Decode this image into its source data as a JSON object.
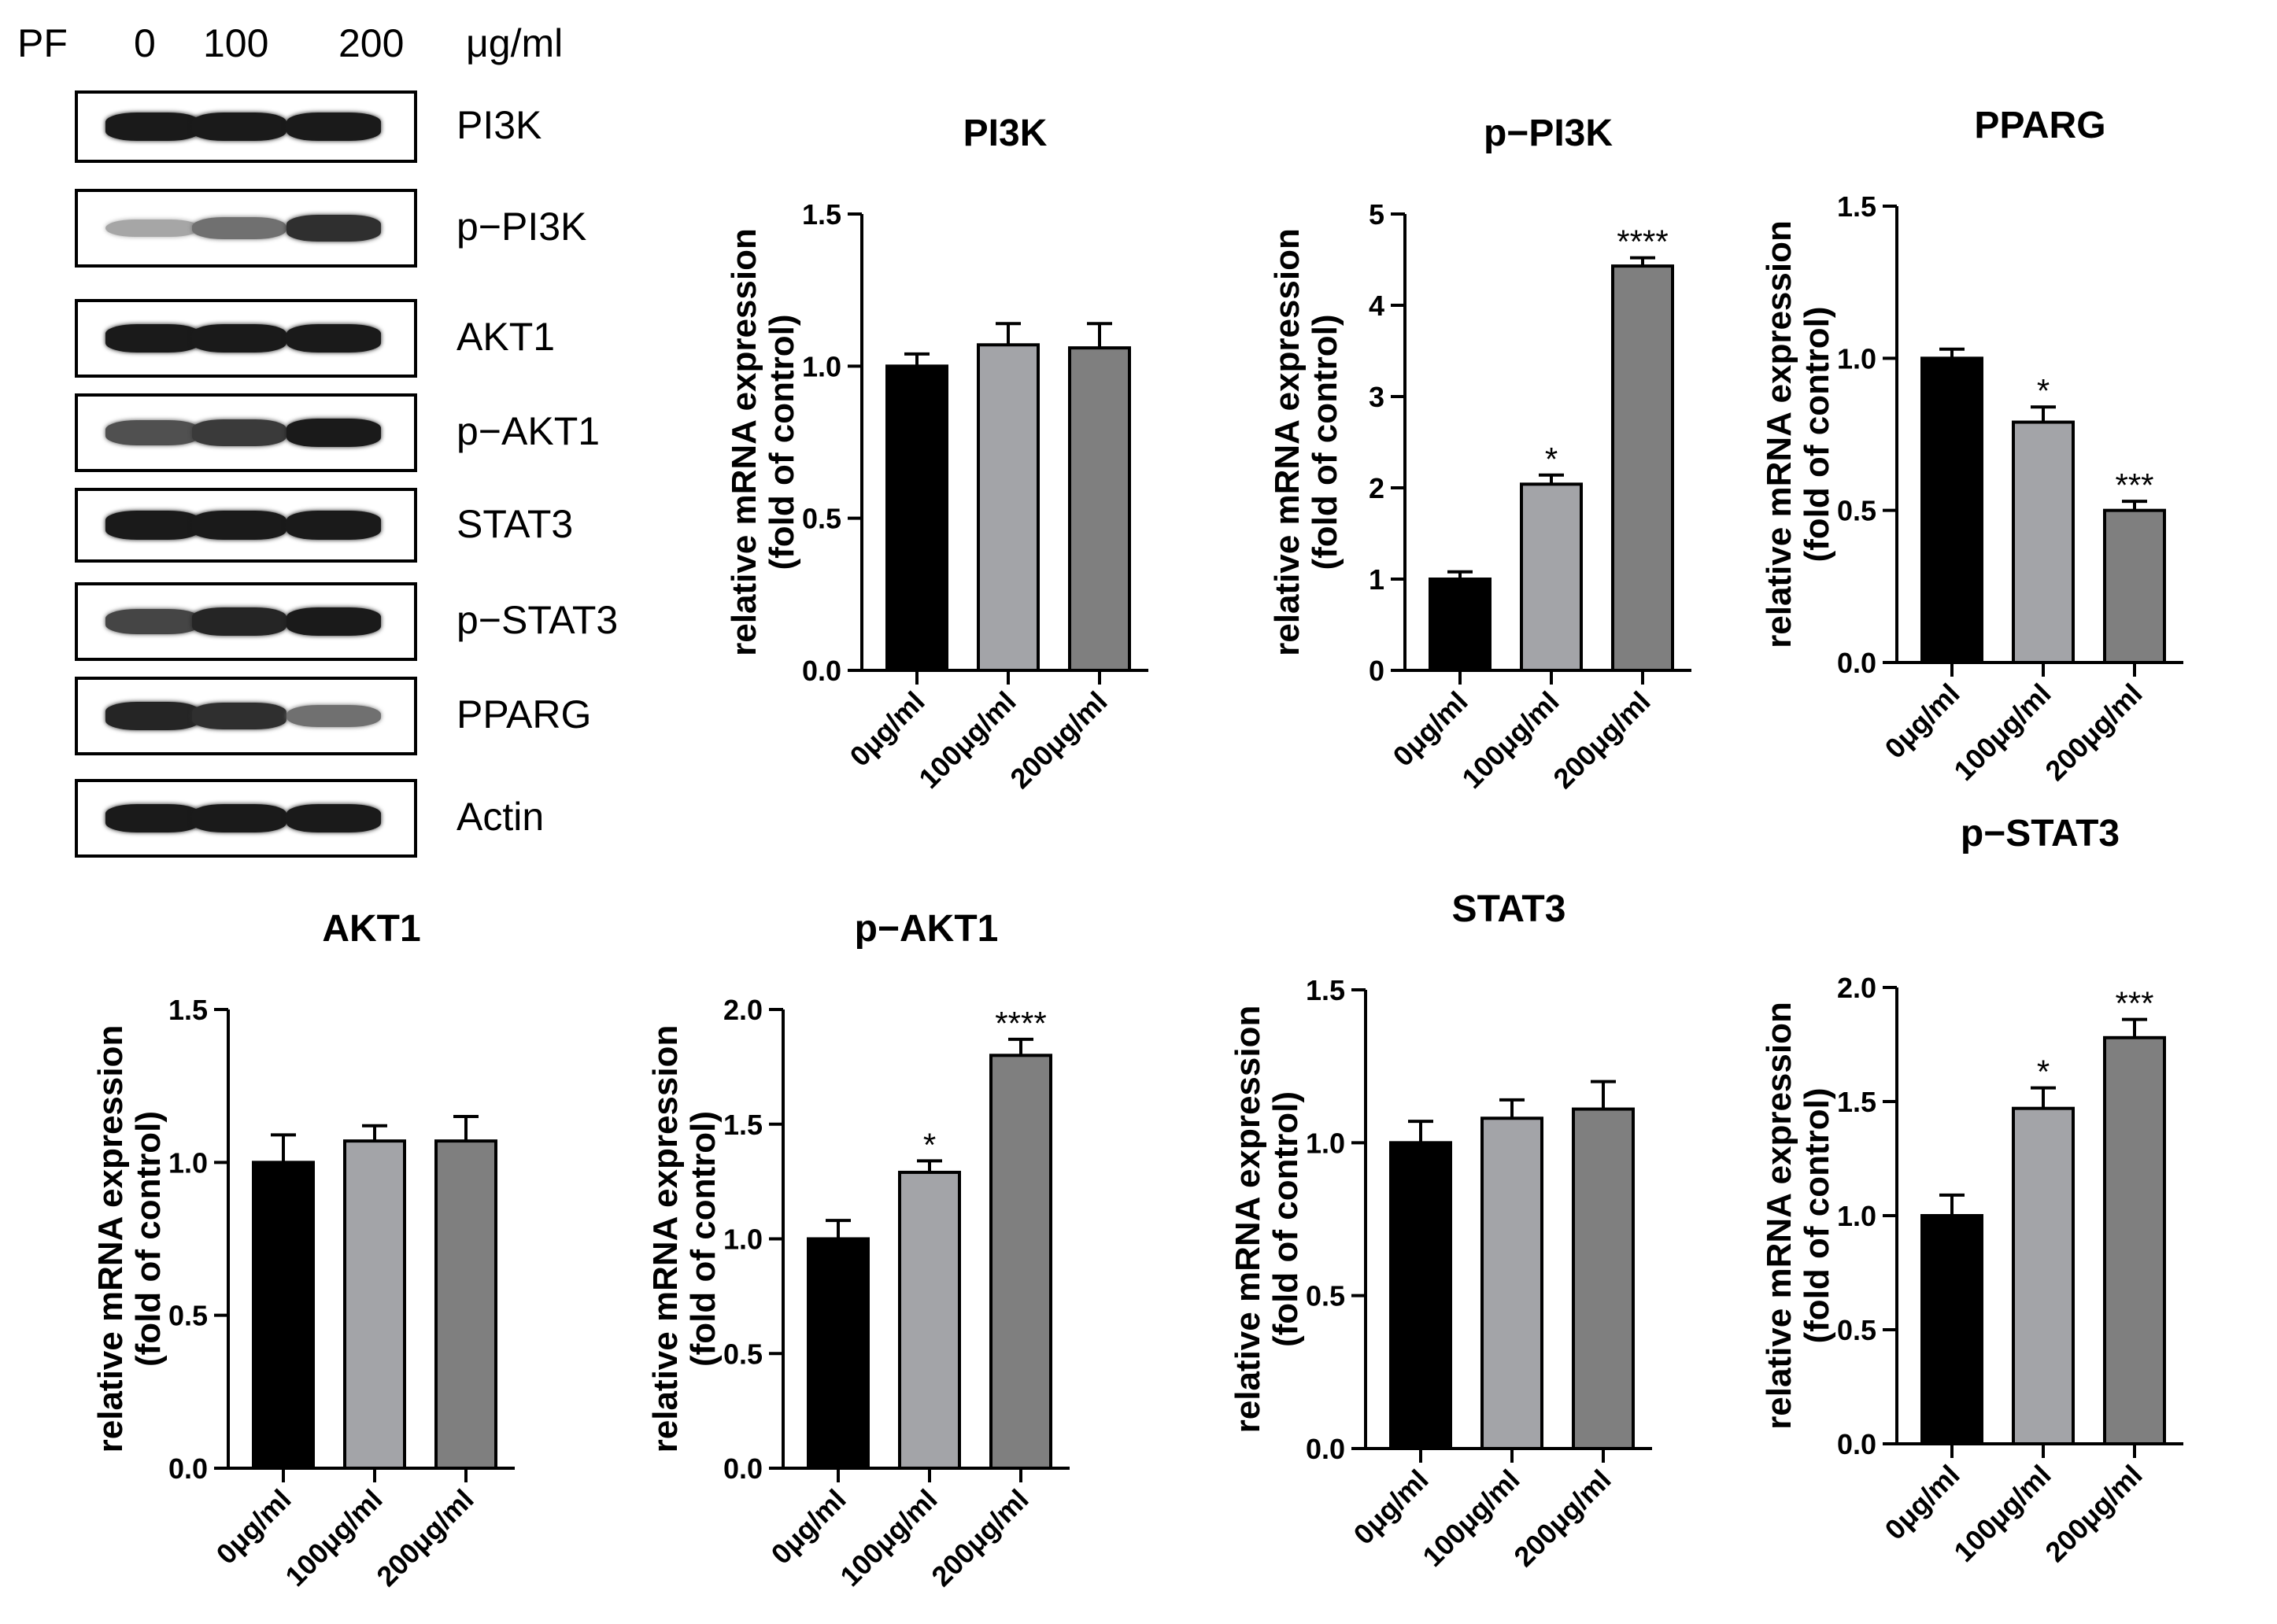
{
  "western_blot": {
    "treatment_label": "PF",
    "doses": [
      "0",
      "100",
      "200"
    ],
    "unit_label": "μg/ml",
    "bands": [
      {
        "label": "PI3K",
        "intensity": [
          0.95,
          0.95,
          0.95
        ]
      },
      {
        "label": "p−PI3K",
        "intensity": [
          0.3,
          0.55,
          0.85
        ]
      },
      {
        "label": "AKT1",
        "intensity": [
          0.95,
          0.95,
          0.95
        ]
      },
      {
        "label": "p−AKT1",
        "intensity": [
          0.7,
          0.8,
          0.95
        ]
      },
      {
        "label": "STAT3",
        "intensity": [
          0.95,
          0.95,
          0.95
        ]
      },
      {
        "label": "p−STAT3",
        "intensity": [
          0.75,
          0.9,
          0.95
        ]
      },
      {
        "label": "PPARG",
        "intensity": [
          0.9,
          0.85,
          0.55
        ]
      },
      {
        "label": "Actin",
        "intensity": [
          0.95,
          0.95,
          0.95
        ]
      }
    ]
  },
  "colors": {
    "bar0": "#000000",
    "bar1": "#a3a4a8",
    "bar2": "#7f7f7f",
    "axis": "#000000"
  },
  "chart_data": [
    {
      "type": "bar",
      "title": "PI3K",
      "ylabel": [
        "relative mRNA expression",
        "(fold of control)"
      ],
      "categories": [
        "0μg/ml",
        "100μg/ml",
        "200μg/ml"
      ],
      "values": [
        1.0,
        1.07,
        1.06
      ],
      "errors": [
        0.04,
        0.07,
        0.08
      ],
      "significance": [
        "",
        "",
        ""
      ],
      "ylim": [
        0,
        1.5
      ],
      "yticks": [
        0.0,
        0.5,
        1.0,
        1.5
      ],
      "ytick_labels": [
        "0.0",
        "0.5",
        "1.0",
        "1.5"
      ]
    },
    {
      "type": "bar",
      "title": "p−PI3K",
      "ylabel": [
        "relative mRNA expression",
        "(fold of control)"
      ],
      "categories": [
        "0μg/ml",
        "100μg/ml",
        "200μg/ml"
      ],
      "values": [
        1.0,
        2.04,
        4.43
      ],
      "errors": [
        0.08,
        0.1,
        0.09
      ],
      "significance": [
        "",
        "*",
        "****"
      ],
      "ylim": [
        0,
        5
      ],
      "yticks": [
        0,
        1,
        2,
        3,
        4,
        5
      ],
      "ytick_labels": [
        "0",
        "1",
        "2",
        "3",
        "4",
        "5"
      ]
    },
    {
      "type": "bar",
      "title": "PPARG",
      "ylabel": [
        "relative mRNA expression",
        "(fold of control)"
      ],
      "categories": [
        "0μg/ml",
        "100μg/ml",
        "200μg/ml"
      ],
      "values": [
        1.0,
        0.79,
        0.5
      ],
      "errors": [
        0.03,
        0.05,
        0.03
      ],
      "significance": [
        "",
        "*",
        "***"
      ],
      "ylim": [
        0,
        1.5
      ],
      "yticks": [
        0.0,
        0.5,
        1.0,
        1.5
      ],
      "ytick_labels": [
        "0.0",
        "0.5",
        "1.0",
        "1.5"
      ]
    },
    {
      "type": "bar",
      "title": "AKT1",
      "ylabel": [
        "relative mRNA expression",
        "(fold of control)"
      ],
      "categories": [
        "0μg/ml",
        "100μg/ml",
        "200μg/ml"
      ],
      "values": [
        1.0,
        1.07,
        1.07
      ],
      "errors": [
        0.09,
        0.05,
        0.08
      ],
      "significance": [
        "",
        "",
        ""
      ],
      "ylim": [
        0,
        1.5
      ],
      "yticks": [
        0.0,
        0.5,
        1.0,
        1.5
      ],
      "ytick_labels": [
        "0.0",
        "0.5",
        "1.0",
        "1.5"
      ]
    },
    {
      "type": "bar",
      "title": "p−AKT1",
      "ylabel": [
        "relative mRNA expression",
        "(fold of control)"
      ],
      "categories": [
        "0μg/ml",
        "100μg/ml",
        "200μg/ml"
      ],
      "values": [
        1.0,
        1.29,
        1.8
      ],
      "errors": [
        0.08,
        0.05,
        0.07
      ],
      "significance": [
        "",
        "*",
        "****"
      ],
      "ylim": [
        0,
        2.0
      ],
      "yticks": [
        0.0,
        0.5,
        1.0,
        1.5,
        2.0
      ],
      "ytick_labels": [
        "0.0",
        "0.5",
        "1.0",
        "1.5",
        "2.0"
      ]
    },
    {
      "type": "bar",
      "title": "STAT3",
      "ylabel": [
        "relative mRNA expression",
        "(fold of control)"
      ],
      "categories": [
        "0μg/ml",
        "100μg/ml",
        "200μg/ml"
      ],
      "values": [
        1.0,
        1.08,
        1.11
      ],
      "errors": [
        0.07,
        0.06,
        0.09
      ],
      "significance": [
        "",
        "",
        ""
      ],
      "ylim": [
        0,
        1.5
      ],
      "yticks": [
        0.0,
        0.5,
        1.0,
        1.5
      ],
      "ytick_labels": [
        "0.0",
        "0.5",
        "1.0",
        "1.5"
      ]
    },
    {
      "type": "bar",
      "title": "p−STAT3",
      "ylabel": [
        "relative mRNA expression",
        "(fold of control)"
      ],
      "categories": [
        "0μg/ml",
        "100μg/ml",
        "200μg/ml"
      ],
      "values": [
        1.0,
        1.47,
        1.78
      ],
      "errors": [
        0.09,
        0.09,
        0.08
      ],
      "significance": [
        "",
        "*",
        "***"
      ],
      "ylim": [
        0,
        2.0
      ],
      "yticks": [
        0.0,
        0.5,
        1.0,
        1.5,
        2.0
      ],
      "ytick_labels": [
        "0.0",
        "0.5",
        "1.0",
        "1.5",
        "2.0"
      ]
    }
  ]
}
